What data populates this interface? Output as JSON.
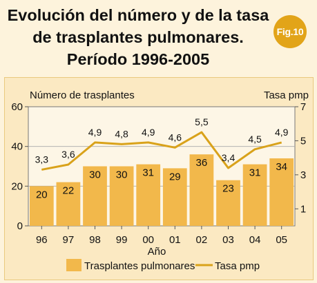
{
  "title": {
    "line1": "Evolución del número y de la tasa",
    "line2": "de trasplantes pulmonares.",
    "line3": "Período 1996-2005"
  },
  "badge": "Fig.10",
  "colors": {
    "background": "#fdf3dc",
    "panel": "#fbe9c2",
    "plot": "#fdf6e6",
    "bar": "#f2b84b",
    "line": "#d9a21a",
    "badge": "#e2a419"
  },
  "chart_data": {
    "type": "bar",
    "categories": [
      "96",
      "97",
      "98",
      "99",
      "00",
      "01",
      "02",
      "03",
      "04",
      "05"
    ],
    "xlabel": "Año",
    "ylabel_left": "Número de trasplantes",
    "ylabel_right": "Tasa pmp",
    "ylim_left": [
      0,
      60
    ],
    "yticks_left": [
      0,
      20,
      40,
      60
    ],
    "ylim_right": [
      0,
      7
    ],
    "yticks_right": [
      1,
      3,
      5,
      7
    ],
    "grid": true,
    "legend_position": "bottom",
    "series": [
      {
        "name": "Trasplantes pulmonares",
        "type": "bar",
        "axis": "left",
        "values": [
          20,
          22,
          30,
          30,
          31,
          29,
          36,
          23,
          31,
          34
        ],
        "labels": [
          "20",
          "22",
          "30",
          "30",
          "31",
          "29",
          "36",
          "23",
          "31",
          "34"
        ]
      },
      {
        "name": "Tasa pmp",
        "type": "line",
        "axis": "right",
        "values": [
          3.3,
          3.6,
          4.9,
          4.8,
          4.9,
          4.6,
          5.5,
          3.4,
          4.5,
          4.9
        ],
        "labels": [
          "3,3",
          "3,6",
          "4,9",
          "4,8",
          "4,9",
          "4,6",
          "5,5",
          "3,4",
          "4,5",
          "4,9"
        ]
      }
    ]
  }
}
